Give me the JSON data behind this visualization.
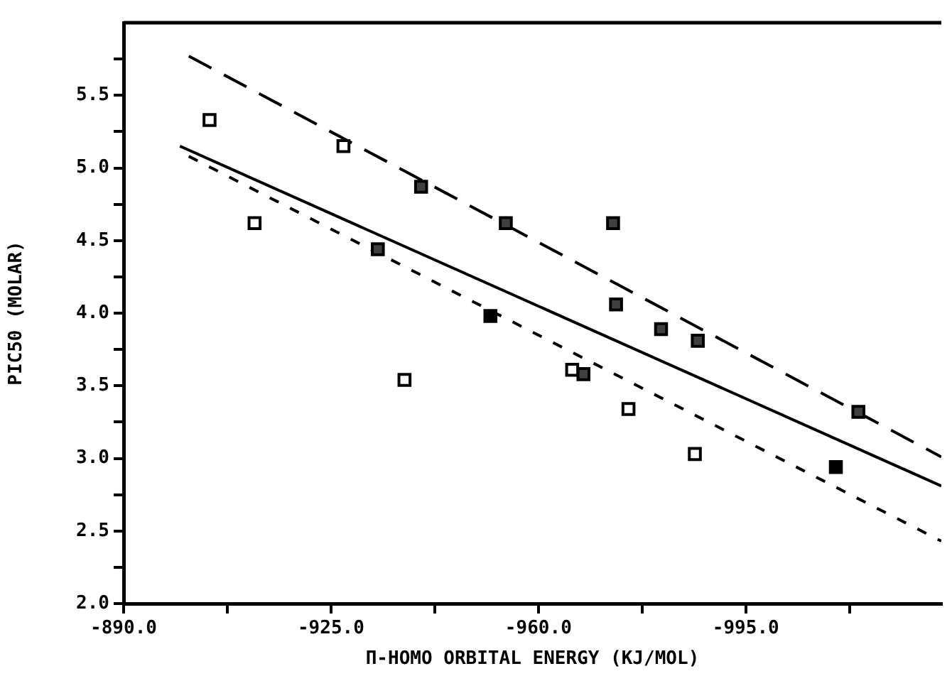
{
  "chart_data": {
    "type": "scatter",
    "xlabel": "Π-HOMO ORBITAL ENERGY (KJ/MOL)",
    "ylabel": "PIC50 (MOLAR)",
    "xlim": [
      -890,
      -1028
    ],
    "ylim": [
      2,
      6
    ],
    "xticks": [
      {
        "value": -890,
        "label": "-890.0"
      },
      {
        "value": -907.5,
        "label": null
      },
      {
        "value": -925,
        "label": "-925.0"
      },
      {
        "value": -942.5,
        "label": null
      },
      {
        "value": -960,
        "label": "-960.0"
      },
      {
        "value": -977.5,
        "label": null
      },
      {
        "value": -995,
        "label": "-995.0"
      },
      {
        "value": -1012.5,
        "label": null
      }
    ],
    "yticks": [
      {
        "value": 2,
        "label": "2.0"
      },
      {
        "value": 2.25,
        "label": null
      },
      {
        "value": 2.5,
        "label": "2.5"
      },
      {
        "value": 2.75,
        "label": null
      },
      {
        "value": 3,
        "label": "3.0"
      },
      {
        "value": 3.25,
        "label": null
      },
      {
        "value": 3.5,
        "label": "3.5"
      },
      {
        "value": 3.75,
        "label": null
      },
      {
        "value": 4,
        "label": "4.0"
      },
      {
        "value": 4.25,
        "label": null
      },
      {
        "value": 4.5,
        "label": "4.5"
      },
      {
        "value": 4.75,
        "label": null
      },
      {
        "value": 5,
        "label": "5.0"
      },
      {
        "value": 5.25,
        "label": null
      },
      {
        "value": 5.5,
        "label": "5.5"
      },
      {
        "value": 5.75,
        "label": null
      }
    ],
    "grid": false,
    "legend": false,
    "series": [
      {
        "type": "scatter",
        "marker": "square",
        "color": "#ffffff",
        "x": [
          -904.5,
          -912.1,
          -927.1,
          -937.4,
          -965.7,
          -975.2,
          -986.4
        ],
        "values": [
          5.33,
          4.62,
          5.15,
          3.54,
          3.61,
          3.34,
          3.03
        ]
      },
      {
        "type": "scatter",
        "marker": "square",
        "color": "#404040",
        "x": [
          -932.9,
          -940.2,
          -954.5,
          -967.6,
          -972.6,
          -973.1,
          -980.7,
          -986.9,
          -1014.0
        ],
        "values": [
          4.44,
          4.87,
          4.62,
          3.58,
          4.62,
          4.06,
          3.89,
          3.81,
          3.32
        ]
      },
      {
        "type": "scatter",
        "marker": "square",
        "color": "#000000",
        "x": [
          -951.9,
          -1010.2
        ],
        "values": [
          3.98,
          2.94
        ]
      },
      {
        "type": "line",
        "line_style": "solid",
        "color": "#000000",
        "x": [
          -899.5,
          -1028
        ],
        "values": [
          5.15,
          2.81
        ]
      },
      {
        "type": "line",
        "line_style": "dashed",
        "color": "#000000",
        "x": [
          -901,
          -1028
        ],
        "values": [
          5.77,
          3.01
        ]
      },
      {
        "type": "line",
        "line_style": "dotted",
        "color": "#000000",
        "x": [
          -901,
          -1028
        ],
        "values": [
          5.08,
          2.43
        ]
      }
    ]
  }
}
